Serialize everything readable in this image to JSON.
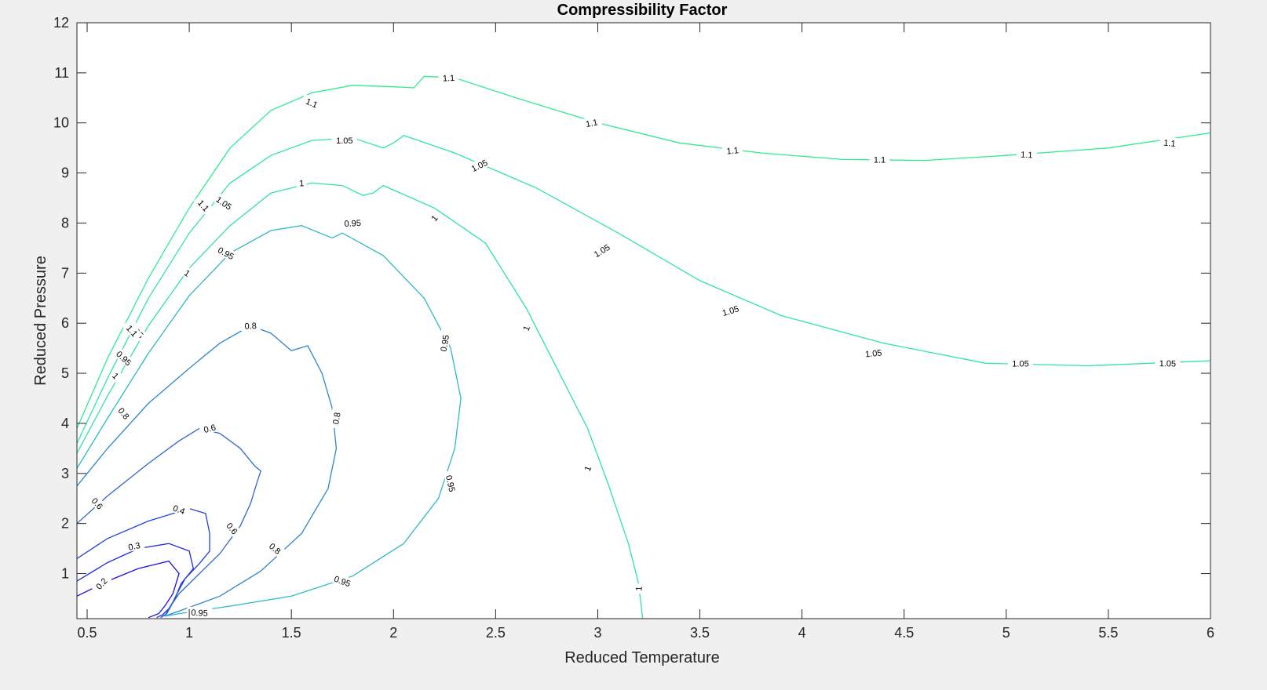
{
  "chart_data": {
    "type": "contour",
    "title": "Compressibility Factor",
    "xlabel": "Reduced Temperature",
    "ylabel": "Reduced Pressure",
    "xlim": [
      0.45,
      6
    ],
    "ylim": [
      0.1,
      12
    ],
    "xticks": [
      0.5,
      1,
      1.5,
      2,
      2.5,
      3,
      3.5,
      4,
      4.5,
      5,
      5.5,
      6
    ],
    "xtick_labels": [
      "0.5",
      "1",
      "1.5",
      "2",
      "2.5",
      "3",
      "3.5",
      "4",
      "4.5",
      "5",
      "5.5",
      "6"
    ],
    "yticks": [
      1,
      2,
      3,
      4,
      5,
      6,
      7,
      8,
      9,
      10,
      11,
      12
    ],
    "ytick_labels": [
      "1",
      "2",
      "3",
      "4",
      "5",
      "6",
      "7",
      "8",
      "9",
      "10",
      "11",
      "12"
    ],
    "grid": false,
    "series": [
      {
        "level": 0.2,
        "label": "0.2",
        "color": "#1a0fe6",
        "points": [
          [
            0.45,
            0.55
          ],
          [
            0.6,
            0.85
          ],
          [
            0.75,
            1.1
          ],
          [
            0.9,
            1.25
          ],
          [
            0.95,
            1.0
          ],
          [
            0.92,
            0.6
          ],
          [
            0.88,
            0.35
          ],
          [
            0.85,
            0.2
          ],
          [
            0.8,
            0.12
          ]
        ],
        "labels": [
          [
            0.57,
            0.8,
            0.82
          ]
        ]
      },
      {
        "level": 0.3,
        "label": "0.3",
        "color": "#1e2be0",
        "points": [
          [
            0.45,
            0.85
          ],
          [
            0.6,
            1.22
          ],
          [
            0.75,
            1.5
          ],
          [
            0.9,
            1.6
          ],
          [
            1.0,
            1.45
          ],
          [
            1.02,
            1.1
          ],
          [
            0.96,
            0.8
          ],
          [
            0.93,
            0.5
          ],
          [
            0.9,
            0.3
          ],
          [
            0.87,
            0.18
          ],
          [
            0.84,
            0.12
          ]
        ],
        "labels": [
          [
            0.73,
            1.55,
            0.2
          ]
        ]
      },
      {
        "level": 0.4,
        "label": "0.4",
        "color": "#2140dc",
        "points": [
          [
            0.45,
            1.3
          ],
          [
            0.6,
            1.7
          ],
          [
            0.8,
            2.05
          ],
          [
            1.0,
            2.3
          ],
          [
            1.08,
            2.2
          ],
          [
            1.1,
            1.8
          ],
          [
            1.1,
            1.45
          ],
          [
            1.05,
            1.2
          ],
          [
            0.98,
            0.9
          ],
          [
            0.94,
            0.6
          ],
          [
            0.91,
            0.35
          ],
          [
            0.89,
            0.2
          ],
          [
            0.86,
            0.12
          ]
        ],
        "labels": [
          [
            0.95,
            2.28,
            -0.35
          ]
        ]
      },
      {
        "level": 0.6,
        "label": "0.6",
        "color": "#2a68d2",
        "points": [
          [
            0.45,
            2.0
          ],
          [
            0.6,
            2.55
          ],
          [
            0.8,
            3.2
          ],
          [
            0.95,
            3.65
          ],
          [
            1.05,
            3.9
          ],
          [
            1.15,
            3.8
          ],
          [
            1.25,
            3.5
          ],
          [
            1.32,
            3.15
          ],
          [
            1.35,
            3.05
          ],
          [
            1.33,
            2.8
          ],
          [
            1.3,
            2.4
          ],
          [
            1.25,
            1.95
          ],
          [
            1.15,
            1.4
          ],
          [
            1.05,
            1.0
          ],
          [
            0.95,
            0.6
          ],
          [
            0.9,
            0.3
          ],
          [
            0.88,
            0.15
          ]
        ],
        "labels": [
          [
            0.55,
            2.4,
            -0.85
          ],
          [
            1.1,
            3.9,
            0.25
          ],
          [
            1.21,
            1.9,
            -0.9
          ]
        ]
      },
      {
        "level": 0.8,
        "label": "0.8",
        "color": "#2d86ce",
        "points": [
          [
            0.45,
            2.75
          ],
          [
            0.6,
            3.5
          ],
          [
            0.8,
            4.4
          ],
          [
            1.0,
            5.1
          ],
          [
            1.15,
            5.6
          ],
          [
            1.3,
            5.95
          ],
          [
            1.4,
            5.8
          ],
          [
            1.5,
            5.45
          ],
          [
            1.58,
            5.55
          ],
          [
            1.65,
            5.0
          ],
          [
            1.7,
            4.3
          ],
          [
            1.72,
            3.5
          ],
          [
            1.68,
            2.7
          ],
          [
            1.55,
            1.8
          ],
          [
            1.35,
            1.05
          ],
          [
            1.15,
            0.55
          ],
          [
            0.95,
            0.25
          ],
          [
            0.88,
            0.15
          ]
        ],
        "labels": [
          [
            0.68,
            4.2,
            -0.9
          ],
          [
            1.3,
            5.95,
            0.05
          ],
          [
            1.72,
            4.1,
            1.4
          ],
          [
            1.42,
            1.5,
            -0.7
          ]
        ]
      },
      {
        "level": 0.95,
        "label": "0.95",
        "color": "#2fb9c4",
        "points": [
          [
            0.45,
            3.1
          ],
          [
            0.6,
            4.1
          ],
          [
            0.8,
            5.4
          ],
          [
            1.0,
            6.55
          ],
          [
            1.2,
            7.4
          ],
          [
            1.4,
            7.85
          ],
          [
            1.55,
            7.95
          ],
          [
            1.7,
            7.7
          ],
          [
            1.75,
            7.8
          ],
          [
            1.95,
            7.35
          ],
          [
            2.15,
            6.5
          ],
          [
            2.28,
            5.5
          ],
          [
            2.33,
            4.5
          ],
          [
            2.3,
            3.5
          ],
          [
            2.22,
            2.5
          ],
          [
            2.05,
            1.6
          ],
          [
            1.8,
            0.95
          ],
          [
            1.5,
            0.55
          ],
          [
            1.2,
            0.35
          ],
          [
            0.95,
            0.2
          ],
          [
            0.88,
            0.15
          ]
        ],
        "labels": [
          [
            0.68,
            5.3,
            -0.75
          ],
          [
            1.18,
            7.4,
            -0.5
          ],
          [
            1.8,
            8.0,
            0.05
          ],
          [
            2.25,
            5.6,
            1.4
          ],
          [
            2.28,
            2.8,
            -1.35
          ],
          [
            1.75,
            0.85,
            -0.35
          ],
          [
            1.05,
            0.22,
            -0.05
          ]
        ]
      },
      {
        "level": 1,
        "label": "1",
        "color": "#30e2ad",
        "points": [
          [
            0.45,
            3.4
          ],
          [
            0.6,
            4.55
          ],
          [
            0.8,
            5.95
          ],
          [
            1.0,
            7.1
          ],
          [
            1.2,
            7.95
          ],
          [
            1.4,
            8.6
          ],
          [
            1.6,
            8.8
          ],
          [
            1.75,
            8.75
          ],
          [
            1.85,
            8.55
          ],
          [
            1.9,
            8.6
          ],
          [
            1.95,
            8.75
          ],
          [
            2.2,
            8.3
          ],
          [
            2.45,
            7.6
          ],
          [
            2.65,
            6.3
          ],
          [
            2.8,
            5.1
          ],
          [
            2.95,
            3.9
          ],
          [
            3.05,
            2.8
          ],
          [
            3.15,
            1.6
          ],
          [
            3.2,
            0.8
          ],
          [
            3.22,
            0.1
          ]
        ],
        "labels": [
          [
            0.64,
            4.95,
            -0.8
          ],
          [
            0.99,
            7.0,
            -0.6
          ],
          [
            1.55,
            8.8,
            0.05
          ],
          [
            2.2,
            8.1,
            0.9
          ],
          [
            2.65,
            5.9,
            1.2
          ],
          [
            2.95,
            3.1,
            1.2
          ],
          [
            3.2,
            0.7,
            1.5
          ]
        ]
      },
      {
        "level": 1.05,
        "label": "1.05",
        "color": "#2fe8a0",
        "points": [
          [
            0.45,
            3.6
          ],
          [
            0.6,
            4.9
          ],
          [
            0.8,
            6.5
          ],
          [
            1.0,
            7.8
          ],
          [
            1.2,
            8.8
          ],
          [
            1.4,
            9.35
          ],
          [
            1.6,
            9.65
          ],
          [
            1.8,
            9.7
          ],
          [
            1.95,
            9.5
          ],
          [
            2.0,
            9.6
          ],
          [
            2.05,
            9.75
          ],
          [
            2.3,
            9.4
          ],
          [
            2.7,
            8.7
          ],
          [
            3.1,
            7.8
          ],
          [
            3.5,
            6.85
          ],
          [
            3.9,
            6.15
          ],
          [
            4.4,
            5.6
          ],
          [
            4.9,
            5.2
          ],
          [
            5.4,
            5.15
          ],
          [
            6.0,
            5.25
          ]
        ],
        "labels": [
          [
            0.74,
            5.85,
            -0.8
          ],
          [
            1.17,
            8.4,
            -0.6
          ],
          [
            1.76,
            9.65,
            0.0
          ],
          [
            2.42,
            9.15,
            0.45
          ],
          [
            3.02,
            7.45,
            0.55
          ],
          [
            3.65,
            6.25,
            0.3
          ],
          [
            4.35,
            5.4,
            0.1
          ],
          [
            5.07,
            5.2,
            0.0
          ],
          [
            5.79,
            5.2,
            -0.02
          ]
        ]
      },
      {
        "level": 1.1,
        "label": "1.1",
        "color": "#30eb92",
        "points": [
          [
            0.45,
            3.9
          ],
          [
            0.6,
            5.3
          ],
          [
            0.8,
            6.9
          ],
          [
            1.0,
            8.3
          ],
          [
            1.2,
            9.5
          ],
          [
            1.4,
            10.25
          ],
          [
            1.6,
            10.6
          ],
          [
            1.8,
            10.75
          ],
          [
            2.0,
            10.72
          ],
          [
            2.1,
            10.7
          ],
          [
            2.15,
            10.93
          ],
          [
            2.3,
            10.9
          ],
          [
            2.6,
            10.5
          ],
          [
            3.0,
            10.0
          ],
          [
            3.4,
            9.6
          ],
          [
            3.8,
            9.4
          ],
          [
            4.2,
            9.27
          ],
          [
            4.6,
            9.25
          ],
          [
            5.0,
            9.35
          ],
          [
            5.5,
            9.5
          ],
          [
            6.0,
            9.8
          ]
        ],
        "labels": [
          [
            0.72,
            5.85,
            -0.85
          ],
          [
            1.07,
            8.35,
            -0.85
          ],
          [
            1.6,
            10.4,
            -0.4
          ],
          [
            2.27,
            10.9,
            0.05
          ],
          [
            2.97,
            10.0,
            0.2
          ],
          [
            3.66,
            9.45,
            0.1
          ],
          [
            4.38,
            9.27,
            0.0
          ],
          [
            5.1,
            9.37,
            -0.05
          ],
          [
            5.8,
            9.6,
            -0.1
          ]
        ]
      }
    ]
  }
}
